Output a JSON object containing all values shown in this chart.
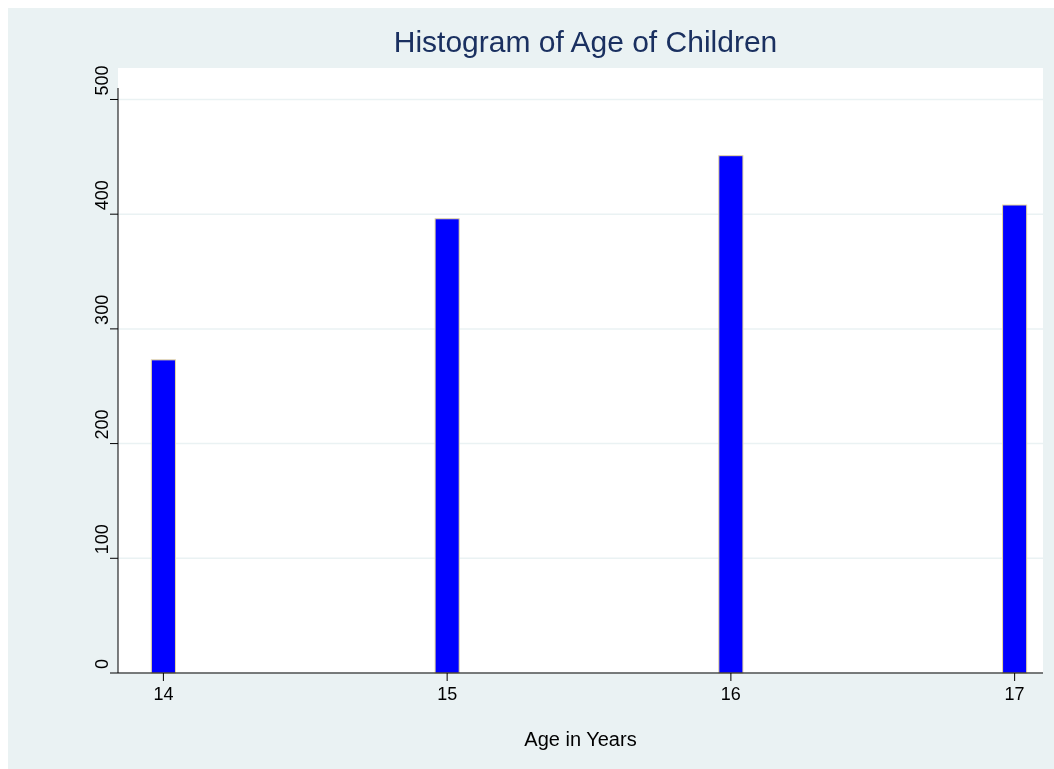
{
  "chart_data": {
    "type": "bar",
    "title": "Histogram of Age of Children",
    "xlabel": "Age in Years",
    "x": [
      14,
      15,
      16,
      17
    ],
    "values": [
      273,
      396,
      451,
      408
    ],
    "color": "#0000ff",
    "xlim": [
      13.84,
      17.1
    ],
    "xticks": [
      14,
      15,
      16,
      17
    ],
    "ylim": [
      0,
      510
    ],
    "yticks": [
      0,
      100,
      200,
      300,
      400,
      500
    ],
    "grid": "y"
  }
}
